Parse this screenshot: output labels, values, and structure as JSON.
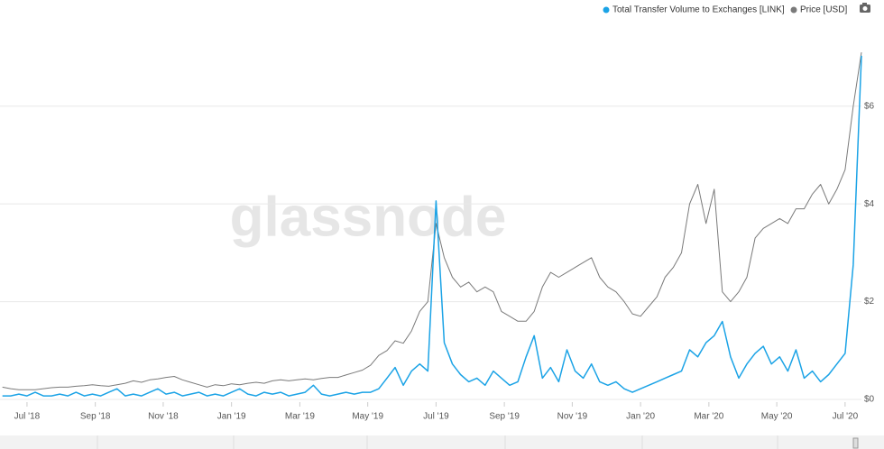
{
  "chart_data": {
    "type": "line",
    "watermark": "glassnode",
    "x": [
      2018.44,
      2018.46,
      2018.48,
      2018.5,
      2018.52,
      2018.54,
      2018.56,
      2018.58,
      2018.6,
      2018.62,
      2018.64,
      2018.66,
      2018.68,
      2018.7,
      2018.72,
      2018.74,
      2018.76,
      2018.78,
      2018.8,
      2018.82,
      2018.84,
      2018.86,
      2018.88,
      2018.9,
      2018.92,
      2018.94,
      2018.96,
      2018.98,
      2019,
      2019.02,
      2019.04,
      2019.06,
      2019.08,
      2019.1,
      2019.12,
      2019.14,
      2019.16,
      2019.18,
      2019.2,
      2019.22,
      2019.24,
      2019.26,
      2019.28,
      2019.3,
      2019.32,
      2019.34,
      2019.36,
      2019.38,
      2019.4,
      2019.42,
      2019.44,
      2019.46,
      2019.48,
      2019.5,
      2019.52,
      2019.54,
      2019.56,
      2019.58,
      2019.6,
      2019.62,
      2019.64,
      2019.66,
      2019.68,
      2019.7,
      2019.72,
      2019.74,
      2019.76,
      2019.78,
      2019.8,
      2019.82,
      2019.84,
      2019.86,
      2019.88,
      2019.9,
      2019.92,
      2019.94,
      2019.96,
      2019.98,
      2020,
      2020.02,
      2020.04,
      2020.06,
      2020.08,
      2020.1,
      2020.12,
      2020.14,
      2020.16,
      2020.18,
      2020.2,
      2020.22,
      2020.24,
      2020.26,
      2020.28,
      2020.3,
      2020.32,
      2020.34,
      2020.36,
      2020.38,
      2020.4,
      2020.42,
      2020.44,
      2020.46,
      2020.48,
      2020.5,
      2020.52,
      2020.54
    ],
    "series": [
      {
        "name": "Total Transfer Volume to Exchanges [LINK]",
        "color": "#1ba3e6",
        "axis": "y",
        "values": [
          1,
          1,
          1.5,
          1,
          2,
          1,
          1,
          1.5,
          1,
          2,
          1,
          1.5,
          1,
          2,
          3,
          1,
          1.5,
          1,
          2,
          3,
          1.5,
          2,
          1,
          1.5,
          2,
          1,
          1.5,
          1,
          2,
          3,
          1.5,
          1,
          2,
          1.5,
          2,
          1,
          1.5,
          2,
          4,
          1.5,
          1,
          1.5,
          2,
          1.5,
          2,
          2,
          3,
          6,
          9,
          4,
          8,
          10,
          8,
          56,
          16,
          10,
          7,
          5,
          6,
          4,
          8,
          6,
          4,
          5,
          12,
          18,
          6,
          9,
          5,
          14,
          8,
          6,
          10,
          5,
          4,
          5,
          3,
          2,
          3,
          4,
          5,
          6,
          7,
          8,
          14,
          12,
          16,
          18,
          22,
          12,
          6,
          10,
          13,
          15,
          10,
          12,
          8,
          14,
          6,
          8,
          5,
          7,
          10,
          13,
          38,
          97
        ]
      },
      {
        "name": "Price [USD]",
        "color": "#7a7a7a",
        "axis": "y2",
        "values": [
          0.25,
          0.22,
          0.2,
          0.2,
          0.2,
          0.22,
          0.24,
          0.25,
          0.25,
          0.27,
          0.28,
          0.3,
          0.28,
          0.27,
          0.3,
          0.33,
          0.38,
          0.35,
          0.4,
          0.42,
          0.45,
          0.47,
          0.4,
          0.35,
          0.3,
          0.25,
          0.3,
          0.28,
          0.32,
          0.3,
          0.33,
          0.35,
          0.33,
          0.38,
          0.4,
          0.38,
          0.4,
          0.42,
          0.4,
          0.43,
          0.45,
          0.45,
          0.5,
          0.55,
          0.6,
          0.7,
          0.9,
          1.0,
          1.2,
          1.15,
          1.4,
          1.8,
          2.0,
          3.6,
          2.9,
          2.5,
          2.3,
          2.4,
          2.2,
          2.3,
          2.2,
          1.8,
          1.7,
          1.6,
          1.6,
          1.8,
          2.3,
          2.6,
          2.5,
          2.6,
          2.7,
          2.8,
          2.9,
          2.5,
          2.3,
          2.2,
          2.0,
          1.75,
          1.7,
          1.9,
          2.1,
          2.5,
          2.7,
          3.0,
          4.0,
          4.4,
          3.6,
          4.3,
          2.2,
          2.0,
          2.2,
          2.5,
          3.3,
          3.5,
          3.6,
          3.7,
          3.6,
          3.9,
          3.9,
          4.2,
          4.4,
          4.0,
          4.3,
          4.7,
          6.0,
          7.1
        ]
      }
    ],
    "xlim": [
      2018.434,
      2020.54
    ],
    "xticks": [
      {
        "value": 2018.5,
        "label": "Jul '18"
      },
      {
        "value": 2018.667,
        "label": "Sep '18"
      },
      {
        "value": 2018.833,
        "label": "Nov '18"
      },
      {
        "value": 2019,
        "label": "Jan '19"
      },
      {
        "value": 2019.167,
        "label": "Mar '19"
      },
      {
        "value": 2019.333,
        "label": "May '19"
      },
      {
        "value": 2019.5,
        "label": "Jul '19"
      },
      {
        "value": 2019.667,
        "label": "Sep '19"
      },
      {
        "value": 2019.833,
        "label": "Nov '19"
      },
      {
        "value": 2020,
        "label": "Jan '20"
      },
      {
        "value": 2020.167,
        "label": "Mar '20"
      },
      {
        "value": 2020.333,
        "label": "May '20"
      },
      {
        "value": 2020.5,
        "label": "Jul '20"
      }
    ],
    "ylim": [
      0,
      100
    ],
    "y2lim": [
      0,
      7.25
    ],
    "y2ticks": [
      {
        "value": 0,
        "label": "$0"
      },
      {
        "value": 2,
        "label": "$2"
      },
      {
        "value": 4,
        "label": "$4"
      },
      {
        "value": 6,
        "label": "$6"
      }
    ],
    "grid": true,
    "legend": "top-right"
  }
}
